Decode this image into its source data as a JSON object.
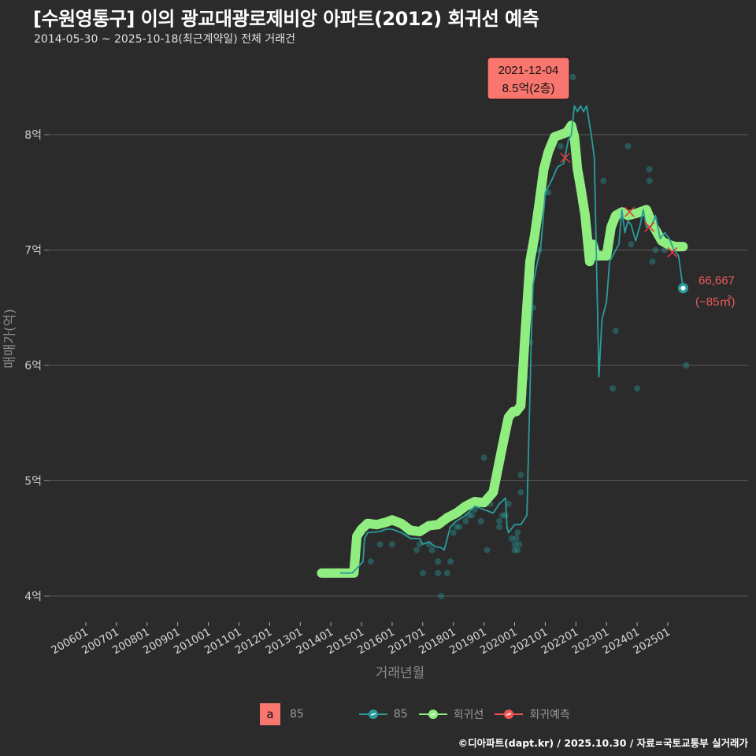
{
  "header": {
    "title": "[수원영통구] 이의 광교대광로제비앙 아파트(2012) 회귀선 예측",
    "subtitle": "2014-05-30 ~ 2025-10-18(최근계약일) 전체 거래건"
  },
  "annotation": {
    "peak_date": "2021-12-04",
    "peak_value": "8.5억(2층)",
    "last_value": "66,667",
    "last_area": "(~85㎡)"
  },
  "legend": {
    "fill_key": "a",
    "fill_label": "85",
    "series": [
      {
        "label": "85",
        "color": "#2a9d9a"
      },
      {
        "label": "회귀선",
        "color": "#90ee80"
      },
      {
        "label": "회귀예측",
        "color": "#f05454"
      }
    ]
  },
  "caption": "©디아파트(dapt.kr) / 2025.10.30 / 자료=국토교통부 실거래가",
  "colors": {
    "background": "#2b2b2c",
    "grid": "#5a5a5a",
    "regression": "#90ee80",
    "series85": "#2a9d9a",
    "prediction": "#e8363c",
    "annotation_bg": "#f8766d"
  },
  "chart_data": {
    "type": "line",
    "title": "[수원영통구] 이의 광교대광로제비앙 아파트(2012) 회귀선 예측",
    "subtitle": "2014-05-30 ~ 2025-10-18(최근계약일) 전체 거래건",
    "xlabel": "거래년월",
    "ylabel": "매매가(억)",
    "x_ticks": [
      "200601",
      "200701",
      "200801",
      "200901",
      "201001",
      "201101",
      "201201",
      "201301",
      "201401",
      "201501",
      "201601",
      "201701",
      "201801",
      "201901",
      "202001",
      "202101",
      "202201",
      "202301",
      "202401",
      "202501"
    ],
    "y_ticks": [
      "4억",
      "5억",
      "6억",
      "7억",
      "8억"
    ],
    "y_tick_values": [
      4,
      5,
      6,
      7,
      8
    ],
    "ylim": [
      3.8,
      8.6
    ],
    "xlim": [
      2005.5,
      2026.3
    ],
    "grid": true,
    "legend_position": "bottom",
    "series": [
      {
        "name": "회귀선",
        "x": [
          2013.7,
          2014.2,
          2014.6,
          2014.75,
          2014.85,
          2015.0,
          2015.2,
          2015.5,
          2015.8,
          2016.0,
          2016.3,
          2016.6,
          2016.9,
          2017.2,
          2017.5,
          2017.8,
          2018.1,
          2018.4,
          2018.7,
          2019.0,
          2019.3,
          2019.6,
          2019.8,
          2019.95,
          2020.05,
          2020.2,
          2020.35,
          2020.5,
          2020.65,
          2020.8,
          2020.95,
          2021.1,
          2021.3,
          2021.5,
          2021.7,
          2021.85,
          2021.95,
          2022.05,
          2022.15,
          2022.3,
          2022.45,
          2022.55,
          2022.65,
          2022.8,
          2023.0,
          2023.15,
          2023.3,
          2023.5,
          2023.7,
          2024.0,
          2024.3,
          2024.5,
          2024.65,
          2024.8,
          2025.0,
          2025.25,
          2025.5
        ],
        "values": [
          4.2,
          4.2,
          4.2,
          4.2,
          4.52,
          4.58,
          4.63,
          4.62,
          4.64,
          4.66,
          4.63,
          4.57,
          4.56,
          4.61,
          4.62,
          4.68,
          4.72,
          4.78,
          4.82,
          4.81,
          4.9,
          5.3,
          5.55,
          5.6,
          5.6,
          5.65,
          6.3,
          6.9,
          7.12,
          7.4,
          7.7,
          7.85,
          7.98,
          8.0,
          8.02,
          8.08,
          7.98,
          7.7,
          7.55,
          7.3,
          6.9,
          7.05,
          6.95,
          6.95,
          6.95,
          7.2,
          7.3,
          7.33,
          7.3,
          7.32,
          7.35,
          7.22,
          7.15,
          7.08,
          7.05,
          7.03,
          7.03
        ]
      },
      {
        "name": "85",
        "x": [
          2014.3,
          2014.7,
          2015.05,
          2015.1,
          2015.2,
          2015.6,
          2015.8,
          2016.0,
          2016.3,
          2016.6,
          2016.9,
          2017.0,
          2017.2,
          2017.4,
          2017.6,
          2017.7,
          2017.9,
          2018.1,
          2018.4,
          2018.7,
          2019.0,
          2019.3,
          2019.5,
          2019.7,
          2019.75,
          2019.8,
          2020.0,
          2020.2,
          2020.4,
          2020.55,
          2020.6,
          2020.75,
          2020.85,
          2021.0,
          2021.2,
          2021.4,
          2021.6,
          2021.75,
          2021.85,
          2021.95,
          2022.05,
          2022.15,
          2022.25,
          2022.35,
          2022.5,
          2022.6,
          2022.75,
          2022.85,
          2023.0,
          2023.1,
          2023.2,
          2023.3,
          2023.4,
          2023.5,
          2023.6,
          2023.7,
          2023.8,
          2023.95,
          2024.1,
          2024.2,
          2024.3,
          2024.45,
          2024.6,
          2024.75,
          2024.9,
          2025.05,
          2025.2,
          2025.35,
          2025.5
        ],
        "values": [
          4.2,
          4.2,
          4.3,
          4.5,
          4.55,
          4.56,
          4.58,
          4.58,
          4.55,
          4.5,
          4.5,
          4.45,
          4.47,
          4.43,
          4.42,
          4.4,
          4.6,
          4.65,
          4.7,
          4.78,
          4.75,
          4.72,
          4.8,
          4.85,
          4.6,
          4.55,
          4.62,
          4.62,
          4.7,
          6.3,
          6.7,
          6.9,
          7.02,
          7.5,
          7.6,
          7.72,
          7.75,
          7.95,
          8.0,
          8.25,
          8.2,
          8.25,
          8.2,
          8.25,
          8.0,
          7.8,
          5.9,
          6.4,
          6.55,
          6.9,
          6.95,
          7.0,
          7.05,
          7.35,
          7.15,
          7.25,
          7.22,
          7.08,
          7.22,
          7.35,
          7.2,
          7.2,
          7.3,
          7.1,
          7.15,
          7.1,
          7.0,
          6.95,
          6.67
        ]
      },
      {
        "name": "회귀예측",
        "x": [
          2021.65,
          2023.75,
          2024.4,
          2025.15
        ],
        "values": [
          7.8,
          7.33,
          7.2,
          6.98
        ]
      }
    ],
    "scatter": {
      "name": "85 거래",
      "points": [
        [
          2014.6,
          4.2
        ],
        [
          2015.3,
          4.3
        ],
        [
          2015.6,
          4.45
        ],
        [
          2016.0,
          4.45
        ],
        [
          2016.5,
          4.55
        ],
        [
          2016.8,
          4.4
        ],
        [
          2016.9,
          4.45
        ],
        [
          2017.0,
          4.2
        ],
        [
          2017.2,
          4.45
        ],
        [
          2017.3,
          4.4
        ],
        [
          2017.5,
          4.2
        ],
        [
          2017.5,
          4.3
        ],
        [
          2017.6,
          4.0
        ],
        [
          2017.8,
          4.2
        ],
        [
          2017.9,
          4.3
        ],
        [
          2018.0,
          4.55
        ],
        [
          2018.1,
          4.6
        ],
        [
          2018.2,
          4.6
        ],
        [
          2018.4,
          4.65
        ],
        [
          2018.5,
          4.7
        ],
        [
          2018.6,
          4.7
        ],
        [
          2018.7,
          4.75
        ],
        [
          2018.9,
          4.65
        ],
        [
          2019.0,
          5.2
        ],
        [
          2019.1,
          4.4
        ],
        [
          2019.2,
          4.8
        ],
        [
          2019.5,
          4.6
        ],
        [
          2019.5,
          4.65
        ],
        [
          2019.6,
          4.7
        ],
        [
          2019.7,
          4.7
        ],
        [
          2019.8,
          4.8
        ],
        [
          2019.9,
          4.5
        ],
        [
          2020.0,
          4.45
        ],
        [
          2020.0,
          4.4
        ],
        [
          2020.05,
          4.5
        ],
        [
          2020.1,
          4.55
        ],
        [
          2020.1,
          4.4
        ],
        [
          2020.15,
          4.45
        ],
        [
          2020.2,
          4.9
        ],
        [
          2020.2,
          5.05
        ],
        [
          2020.3,
          5.75
        ],
        [
          2020.35,
          5.9
        ],
        [
          2020.5,
          6.2
        ],
        [
          2020.6,
          6.5
        ],
        [
          2020.8,
          7.0
        ],
        [
          2021.0,
          7.5
        ],
        [
          2021.1,
          7.5
        ],
        [
          2021.5,
          7.9
        ],
        [
          2021.6,
          8.0
        ],
        [
          2021.9,
          8.5
        ],
        [
          2022.9,
          7.6
        ],
        [
          2023.3,
          6.3
        ],
        [
          2023.2,
          5.8
        ],
        [
          2023.7,
          7.9
        ],
        [
          2023.8,
          7.05
        ],
        [
          2024.0,
          5.8
        ],
        [
          2024.4,
          7.7
        ],
        [
          2024.4,
          7.6
        ],
        [
          2024.5,
          6.9
        ],
        [
          2024.6,
          7.0
        ],
        [
          2024.9,
          7.0
        ],
        [
          2025.6,
          6.0
        ]
      ]
    },
    "annotations": [
      {
        "text": "2021-12-04\n8.5억(2층)",
        "x": 2021.92,
        "y": 8.5
      },
      {
        "text": "66,667\n(~85㎡)",
        "x": 2025.5,
        "y": 6.67
      }
    ]
  }
}
